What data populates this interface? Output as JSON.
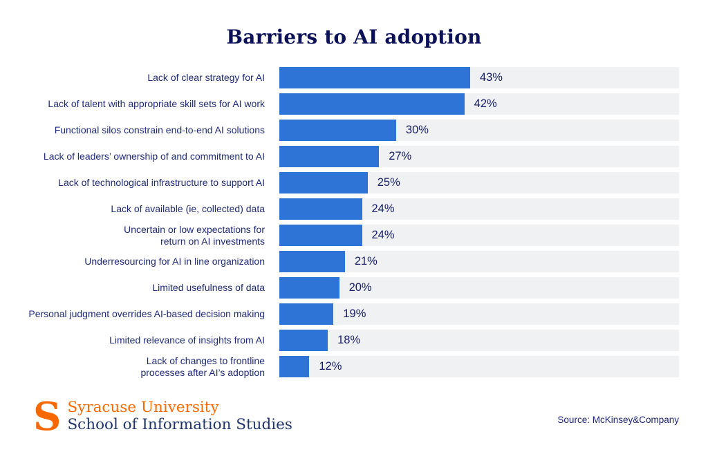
{
  "chart_data": {
    "type": "bar",
    "orientation": "horizontal",
    "title": "Barriers to AI adoption",
    "categories": [
      "Lack of clear strategy for AI",
      "Lack of talent with appropriate skill sets for AI work",
      "Functional silos constrain end-to-end AI solutions",
      "Lack of leaders’ ownership of and commitment to AI",
      "Lack of technological infrastructure to support AI",
      "Lack of available (ie, collected) data",
      "Uncertain or low expectations for\nreturn on AI investments",
      "Underresourcing for AI in line organization",
      "Limited usefulness of data",
      "Personal judgment overrides AI-based decision making",
      "Limited relevance of insights from AI",
      "Lack of changes to frontline\nprocesses after AI’s adoption"
    ],
    "values": [
      43,
      42,
      30,
      27,
      25,
      24,
      24,
      21,
      20,
      19,
      18,
      12
    ],
    "value_suffix": "%",
    "xlabel": "",
    "ylabel": "",
    "grid": false,
    "legend": "none",
    "bar_color": "#2e74d6",
    "track_color": "#eff1f3"
  },
  "footer": {
    "logo_letter": "S",
    "org_name": "Syracuse University",
    "org_unit": "School of Information Studies",
    "source": "Source: McKinsey&Company"
  },
  "colors": {
    "title_navy": "#0b1158",
    "label_navy": "#1e2a78",
    "value_navy": "#161d66",
    "bar_blue": "#2e74d6",
    "track_gray": "#eff1f3",
    "syracuse_orange": "#f76900",
    "unit_navy": "#21356c"
  }
}
